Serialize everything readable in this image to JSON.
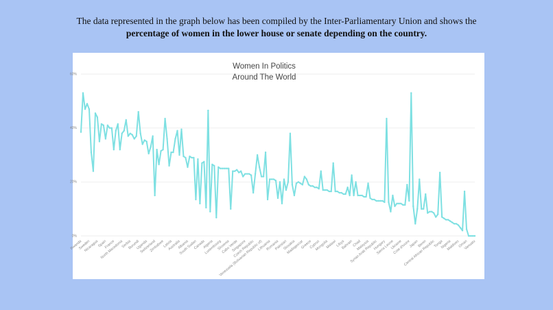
{
  "intro": {
    "line1": "The data represented in the graph below has been compiled by the Inter-Parliamentary Union and shows the",
    "line2": "percentage of women in the lower house or senate depending on the country."
  },
  "chart_data": {
    "type": "line",
    "title": "Women In Politics Around The World",
    "categories": [
      "Rwanda",
      null,
      null,
      null,
      "Sweden",
      null,
      null,
      null,
      "Nicaragua",
      null,
      null,
      null,
      "Spain",
      null,
      null,
      null,
      "France",
      null,
      null,
      null,
      "North Macedonia",
      null,
      null,
      null,
      "Serbia",
      null,
      null,
      null,
      "Burundi",
      null,
      null,
      null,
      "Uganda",
      null,
      null,
      null,
      "Switzerland",
      null,
      null,
      null,
      "Zimbabwe",
      null,
      null,
      null,
      "Latvia",
      null,
      null,
      null,
      "Australia",
      null,
      null,
      null,
      "Albania",
      null,
      null,
      null,
      "South Sudan",
      null,
      null,
      null,
      "Canada",
      null,
      null,
      null,
      "Algeria",
      null,
      null,
      null,
      "Luxembourg",
      null,
      null,
      null,
      "Slovenia",
      null,
      null,
      null,
      "Cabo Verde",
      null,
      null,
      null,
      "Singapore",
      null,
      null,
      null,
      "Czech Republic",
      null,
      null,
      null,
      "Venezuela (Bolivarian Republic of)",
      null,
      null,
      null,
      "Lithuania",
      null,
      null,
      null,
      "Romania",
      null,
      null,
      null,
      "Pakistan",
      null,
      null,
      null,
      "Slovakia",
      null,
      null,
      null,
      "Madagascar",
      null,
      null,
      null,
      "Greece",
      null,
      null,
      null,
      "Cyprus",
      null,
      null,
      null,
      "Mongolia",
      null,
      null,
      null,
      "Malawi",
      null,
      null,
      null,
      "Libya",
      null,
      null,
      null,
      "Bahrain",
      null,
      null,
      null,
      "Chad",
      null,
      null,
      null,
      "Malaysia",
      null,
      null,
      null,
      "Syrian Arab Republic",
      null,
      null,
      null,
      "Hungary",
      null,
      null,
      null,
      "Sierra Leone",
      null,
      null,
      null,
      "Ukraine",
      null,
      null,
      null,
      "Cote d'Ivoire",
      null,
      null,
      null,
      "Japan",
      null,
      null,
      null,
      "Benin",
      null,
      null,
      null,
      "Central African Republic",
      null,
      null,
      null,
      "Tonga",
      null,
      null,
      null,
      "Nigeria",
      null,
      null,
      null,
      "Maldives",
      null,
      null,
      null,
      "Oman",
      null,
      null,
      null,
      "Vanuatu"
    ],
    "values": [
      38.5,
      53,
      47,
      49,
      47,
      31,
      24,
      45.5,
      44,
      35,
      41.5,
      41,
      36,
      41,
      40,
      40,
      32,
      39,
      41.5,
      32,
      38,
      39,
      43,
      37,
      38,
      37.5,
      36,
      37,
      46,
      38,
      34,
      35.5,
      35,
      30.5,
      33,
      37,
      15,
      32,
      26.5,
      31.5,
      32,
      43.5,
      36,
      26,
      31,
      31,
      36,
      39,
      30,
      39.5,
      29.5,
      29,
      25.5,
      29.5,
      29,
      29,
      13.5,
      28.5,
      12,
      27,
      27.5,
      10.5,
      46.5,
      9,
      26.5,
      26,
      6.8,
      25.5,
      25,
      25,
      25,
      25,
      25,
      10,
      24,
      24,
      24.5,
      23.5,
      24,
      22,
      23,
      23,
      23,
      22.5,
      16,
      23,
      30,
      25.5,
      22,
      22,
      31,
      13.5,
      21,
      21,
      21,
      20.5,
      14,
      20,
      12,
      21,
      17,
      20,
      38,
      19,
      15,
      19.5,
      20,
      19.5,
      19,
      22,
      21,
      19,
      18.5,
      18.5,
      18,
      18,
      17.5,
      24,
      17,
      17,
      17,
      16.5,
      16.5,
      27,
      16.5,
      16.5,
      16,
      16,
      15.5,
      15.5,
      18,
      15,
      22.5,
      15,
      20,
      15,
      15,
      15,
      14.5,
      14.5,
      19.5,
      14,
      13.5,
      13.5,
      13,
      13,
      13,
      13,
      12.5,
      43.5,
      12.5,
      9,
      15,
      11,
      12,
      12,
      12,
      11.5,
      11.5,
      19,
      13,
      53,
      11,
      4.5,
      10,
      21,
      10,
      10,
      15.5,
      8.5,
      9,
      9,
      8.5,
      7,
      8,
      23.5,
      7,
      6.5,
      6,
      6,
      5.5,
      5,
      4.5,
      4.5,
      4,
      3,
      2,
      16.5,
      2.5,
      0,
      0,
      0,
      0
    ],
    "color": "#7ee0e2",
    "ylim": [
      0,
      60
    ],
    "yticks": [
      {
        "value": 0,
        "label": "0%"
      },
      {
        "value": 20,
        "label": "20%"
      },
      {
        "value": 40,
        "label": "40%"
      },
      {
        "value": 60,
        "label": "60%"
      }
    ],
    "grid": true
  }
}
